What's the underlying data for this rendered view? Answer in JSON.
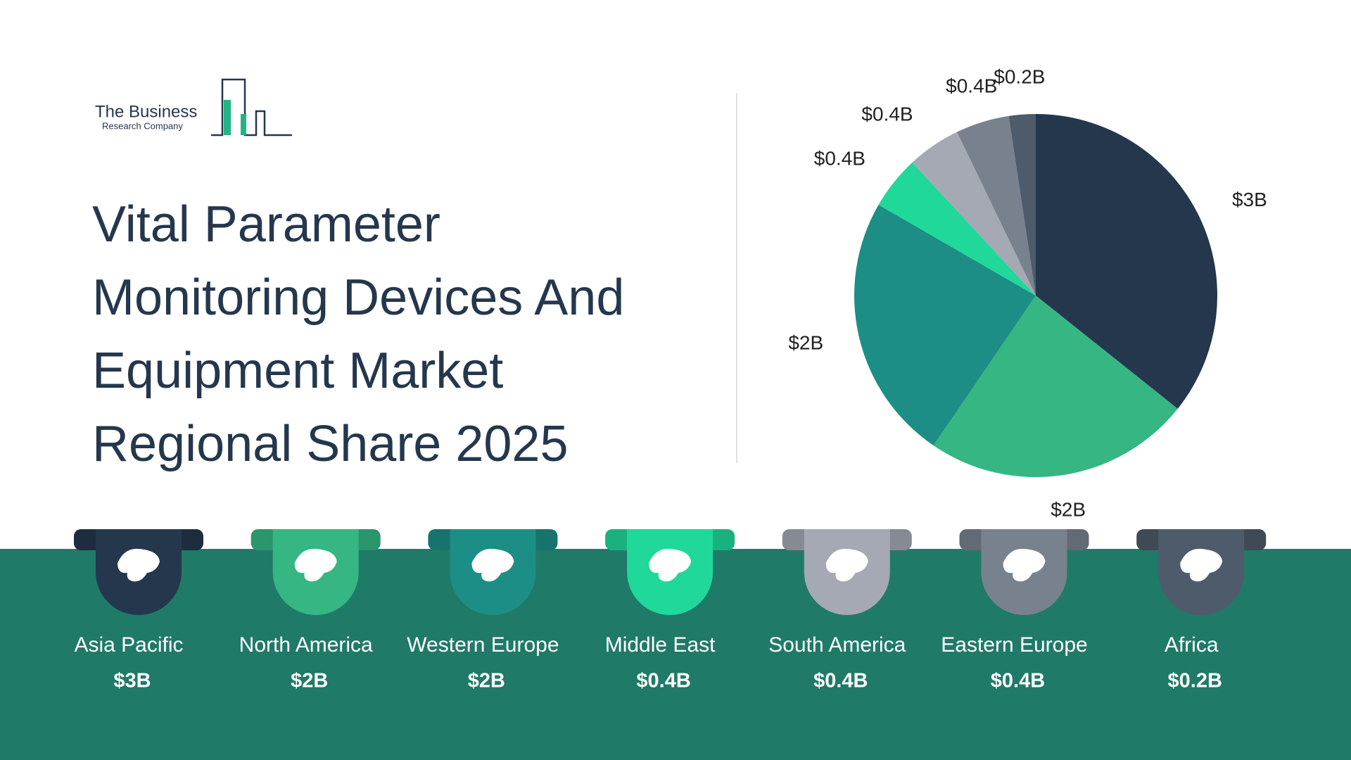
{
  "logo": {
    "line1": "The Business",
    "line2": "Research Company"
  },
  "chart_data": {
    "type": "pie",
    "title": "Vital Parameter Monitoring Devices And Equipment Market Regional Share 2025",
    "categories": [
      "Asia Pacific",
      "North America",
      "Western Europe",
      "Middle East",
      "South America",
      "Eastern Europe",
      "Africa"
    ],
    "values": [
      3,
      2,
      2,
      0.4,
      0.4,
      0.4,
      0.2
    ],
    "value_labels": [
      "$3B",
      "$2B",
      "$2B",
      "$0.4B",
      "$0.4B",
      "$0.4B",
      "$0.2B"
    ],
    "colors": [
      "#24374d",
      "#35b683",
      "#1c8e85",
      "#20d89a",
      "#a4a9b3",
      "#78828f",
      "#4e5b6b"
    ]
  }
}
